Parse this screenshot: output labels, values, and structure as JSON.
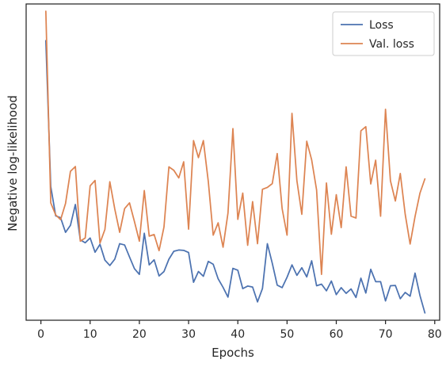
{
  "chart_data": {
    "type": "line",
    "xlabel": "Epochs",
    "ylabel": "Negative log-likelihood",
    "xlim": [
      -3,
      81
    ],
    "ylim": [
      0,
      100
    ],
    "x_ticks": [
      0,
      10,
      20,
      30,
      40,
      50,
      60,
      70,
      80
    ],
    "y_ticks_labeled": false,
    "grid": false,
    "legend_position": "top-right",
    "series": [
      {
        "name": "Loss",
        "color": "#4c72b0",
        "x": [
          1,
          2,
          3,
          4,
          5,
          6,
          7,
          8,
          9,
          10,
          11,
          12,
          13,
          14,
          15,
          16,
          17,
          18,
          19,
          20,
          21,
          22,
          23,
          24,
          25,
          26,
          27,
          28,
          29,
          30,
          31,
          32,
          33,
          34,
          35,
          36,
          37,
          38,
          39,
          40,
          41,
          42,
          43,
          44,
          45,
          46,
          47,
          48,
          49,
          50,
          51,
          52,
          53,
          54,
          55,
          56,
          57,
          58,
          59,
          60,
          61,
          62,
          63,
          64,
          65,
          66,
          67,
          68,
          69,
          70,
          71,
          72,
          73,
          74,
          75,
          76,
          77,
          78
        ],
        "values": [
          88.4,
          42.3,
          33.0,
          32.4,
          27.8,
          30.0,
          36.6,
          25.4,
          24.5,
          26.0,
          21.5,
          24.0,
          19.0,
          17.3,
          19.3,
          24.2,
          23.8,
          20.0,
          16.3,
          14.5,
          27.5,
          17.5,
          19.1,
          14.0,
          15.4,
          19.3,
          21.8,
          22.2,
          22.1,
          21.4,
          12.0,
          15.4,
          13.9,
          18.6,
          17.7,
          13.1,
          10.4,
          7.3,
          16.4,
          15.8,
          10.0,
          10.8,
          10.5,
          5.8,
          10.0,
          24.2,
          18.0,
          11.1,
          10.3,
          13.6,
          17.5,
          14.2,
          16.6,
          13.7,
          18.8,
          10.9,
          11.4,
          9.3,
          12.4,
          8.1,
          10.3,
          8.5,
          9.9,
          7.2,
          13.3,
          8.6,
          16.1,
          12.2,
          12.2,
          6.1,
          10.9,
          11.0,
          6.8,
          8.8,
          7.6,
          14.9,
          7.8,
          2.3
        ]
      },
      {
        "name": "Val. loss",
        "color": "#dd8452",
        "x": [
          1,
          2,
          3,
          4,
          5,
          6,
          7,
          8,
          9,
          10,
          11,
          12,
          13,
          14,
          15,
          16,
          17,
          18,
          19,
          20,
          21,
          22,
          23,
          24,
          25,
          26,
          27,
          28,
          29,
          30,
          31,
          32,
          33,
          34,
          35,
          36,
          37,
          38,
          39,
          40,
          41,
          42,
          43,
          44,
          45,
          46,
          47,
          48,
          49,
          50,
          51,
          52,
          53,
          54,
          55,
          56,
          57,
          58,
          59,
          60,
          61,
          62,
          63,
          64,
          65,
          66,
          67,
          68,
          69,
          70,
          71,
          72,
          73,
          74,
          75,
          76,
          77,
          78
        ],
        "values": [
          97.7,
          37.1,
          33.3,
          31.8,
          36.9,
          47.1,
          48.6,
          25.0,
          26.0,
          42.5,
          44.2,
          24.4,
          28.7,
          43.8,
          35.2,
          27.8,
          35.3,
          37.1,
          31.2,
          25.0,
          41.0,
          26.6,
          27.1,
          22.0,
          29.5,
          48.5,
          47.4,
          45.0,
          50.1,
          28.8,
          56.8,
          51.4,
          56.8,
          43.9,
          26.9,
          30.8,
          23.1,
          33.9,
          60.6,
          31.9,
          40.2,
          23.7,
          37.5,
          24.2,
          41.4,
          42.0,
          43.2,
          52.7,
          35.3,
          26.9,
          65.4,
          44.1,
          33.5,
          56.6,
          50.7,
          41.2,
          14.5,
          43.4,
          27.2,
          39.7,
          29.3,
          48.5,
          32.9,
          32.3,
          59.9,
          61.2,
          43.1,
          50.6,
          32.9,
          66.7,
          44.1,
          37.7,
          46.4,
          33.5,
          24.1,
          32.8,
          40.2,
          44.7
        ]
      }
    ]
  }
}
